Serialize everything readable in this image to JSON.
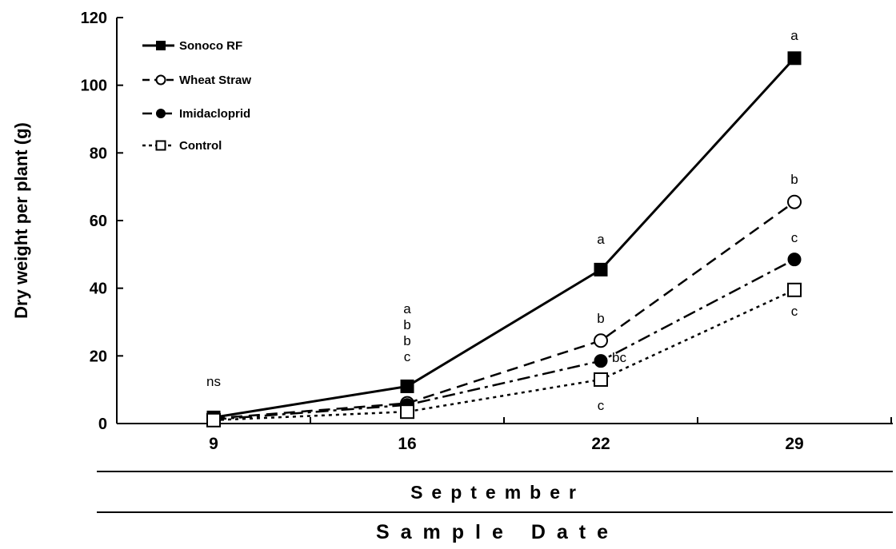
{
  "chart_data": {
    "type": "line",
    "ylabel": "Dry weight per plant (g)",
    "ylim": [
      0,
      120
    ],
    "yticks": [
      "0",
      "20",
      "40",
      "60",
      "80",
      "100",
      "120"
    ],
    "categories": [
      "9",
      "16",
      "22",
      "29"
    ],
    "xlabel_month": "September",
    "xlabel": "Sample Date",
    "series": [
      {
        "name": "Sonoco RF",
        "values": [
          1.8,
          11,
          45.5,
          108
        ],
        "marker": "filled-square",
        "line": "solid"
      },
      {
        "name": "Wheat Straw",
        "values": [
          1.5,
          6,
          24.5,
          65.5
        ],
        "marker": "open-circle",
        "line": "dashed"
      },
      {
        "name": "Imidacloprid",
        "values": [
          1.2,
          5.5,
          18.5,
          48.5
        ],
        "marker": "filled-circle",
        "line": "dash-dot"
      },
      {
        "name": "Control",
        "values": [
          1,
          3.5,
          13,
          39.5
        ],
        "marker": "open-square",
        "line": "dotted"
      }
    ],
    "annotations": [
      {
        "x": "9",
        "text": "ns"
      },
      {
        "x": "16",
        "text": "a"
      },
      {
        "x": "16",
        "text": "b"
      },
      {
        "x": "16",
        "text": "b"
      },
      {
        "x": "16",
        "text": "c"
      },
      {
        "x": "22",
        "text": "a"
      },
      {
        "x": "22",
        "text": "b"
      },
      {
        "x": "22",
        "text": "bc"
      },
      {
        "x": "22",
        "text": "c"
      },
      {
        "x": "29",
        "text": "a"
      },
      {
        "x": "29",
        "text": "b"
      },
      {
        "x": "29",
        "text": "c"
      },
      {
        "x": "29",
        "text": "c"
      }
    ],
    "legend_position": "top-left",
    "grid": false
  }
}
